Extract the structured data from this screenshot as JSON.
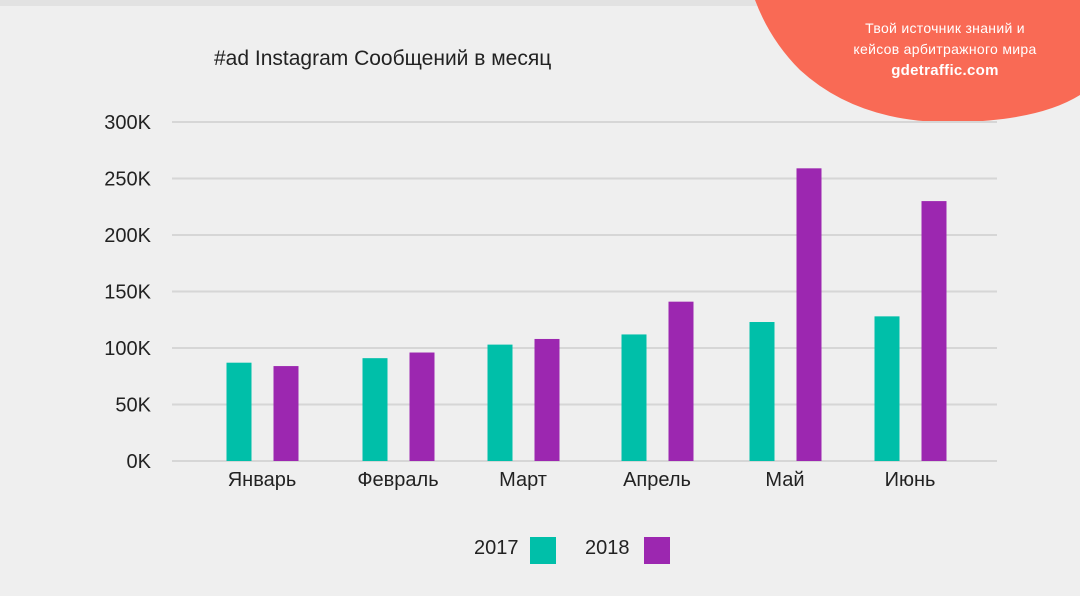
{
  "badge": {
    "line1": "Твой источник знаний и",
    "line2": "кейсов арбитражного мира",
    "site": "gdetraffic.com",
    "color": "#f96a55"
  },
  "chart_data": {
    "type": "bar",
    "title": "#ad Instagram Сообщений в месяц",
    "categories": [
      "Январь",
      "Февраль",
      "Март",
      "Апрель",
      "Май",
      "Июнь"
    ],
    "series": [
      {
        "name": "2017",
        "color": "#00bfa9",
        "values": [
          87,
          91,
          103,
          112,
          123,
          128
        ]
      },
      {
        "name": "2018",
        "color": "#9c27b0",
        "values": [
          84,
          96,
          108,
          141,
          259,
          230
        ]
      }
    ],
    "unit": "K",
    "yticks": [
      "0K",
      "50K",
      "100K",
      "150K",
      "200K",
      "250K",
      "300K"
    ],
    "ylim": [
      0,
      300
    ],
    "grid": true,
    "legend": "bottom"
  }
}
